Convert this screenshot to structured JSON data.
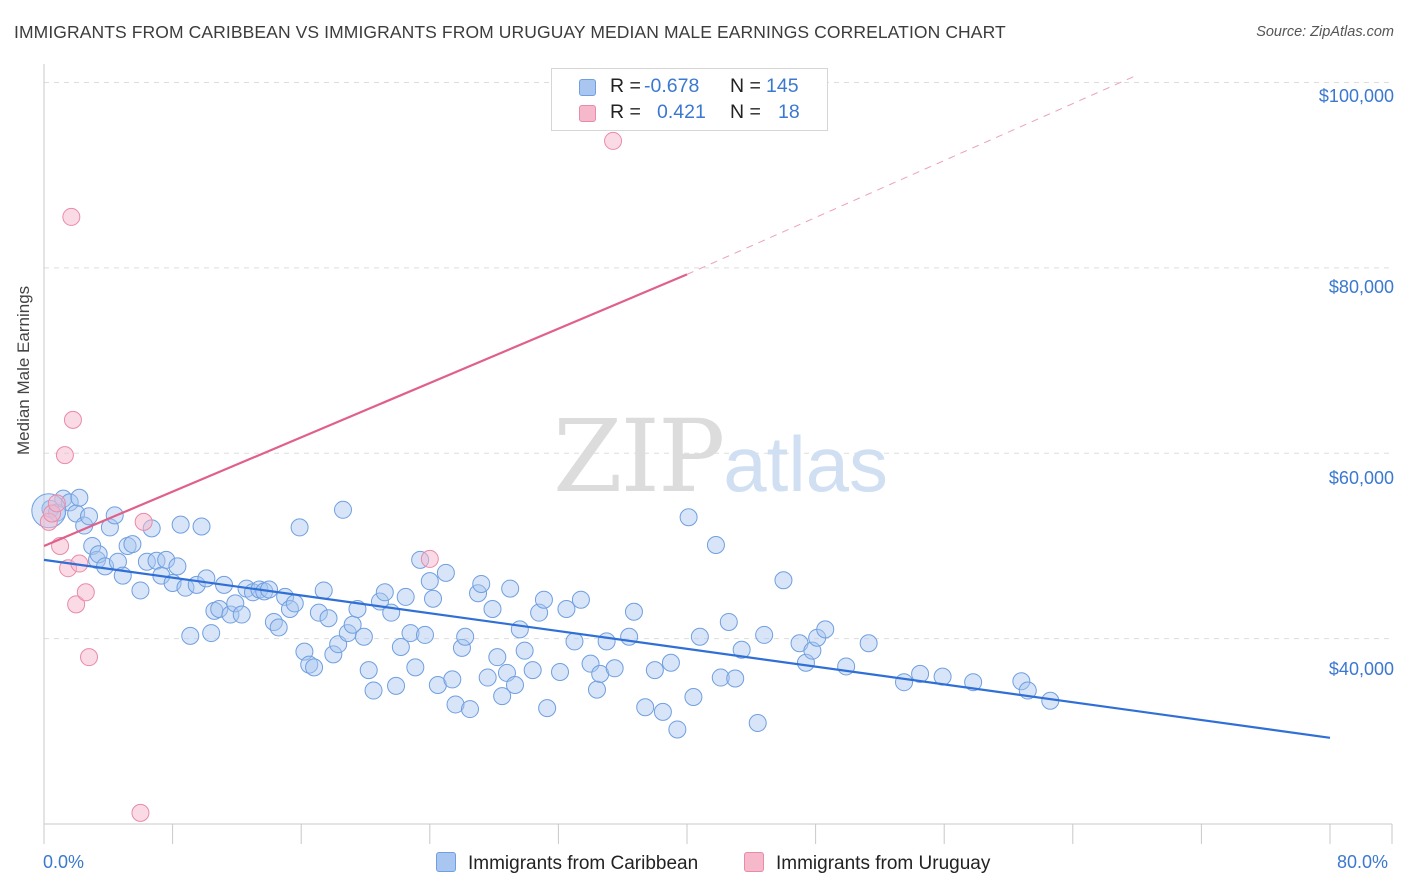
{
  "header": {
    "title": "IMMIGRANTS FROM CARIBBEAN VS IMMIGRANTS FROM URUGUAY MEDIAN MALE EARNINGS CORRELATION CHART",
    "source": "Source: ZipAtlas.com"
  },
  "watermark": {
    "zip": "ZIP",
    "atlas": "atlas"
  },
  "legend": {
    "r_label": "R =",
    "n_label": "N =",
    "rows": [
      {
        "r": "-0.678",
        "n": "145",
        "color": "#a9c6f0"
      },
      {
        "r": "0.421",
        "n": "18",
        "color": "#f6b8cb"
      }
    ]
  },
  "series_legend": {
    "caribbean": "Immigrants from Caribbean",
    "uruguay": "Immigrants from Uruguay"
  },
  "colors": {
    "blue_fill": "#a9c6f0",
    "blue_stroke": "#6f9fe0",
    "blue_line": "#2f6fd6",
    "pink_fill": "#f6b8cb",
    "pink_stroke": "#e98aa8",
    "pink_line": "#e0608a",
    "axis_text": "#3b78d0"
  },
  "axes": {
    "ylabel": "Median Male Earnings",
    "x_min_label": "0.0%",
    "x_max_label": "80.0%",
    "y_ticks": [
      "$100,000",
      "$80,000",
      "$60,000",
      "$40,000"
    ]
  },
  "chart_data": {
    "type": "scatter",
    "xlim": [
      0,
      80
    ],
    "ylim": [
      20000,
      102000
    ],
    "y_tick_values": [
      100000,
      80000,
      60000,
      40000
    ],
    "x_minor_ticks": [
      8,
      16,
      24,
      32,
      40,
      48,
      56,
      64,
      72
    ],
    "grid": true,
    "series": [
      {
        "name": "Immigrants from Caribbean",
        "color": "#a9c6f0",
        "points": [
          [
            0.4,
            54000
          ],
          [
            0.8,
            53600
          ],
          [
            1.2,
            55100
          ],
          [
            1.6,
            54700
          ],
          [
            2.0,
            53500
          ],
          [
            2.2,
            55200
          ],
          [
            2.5,
            52200
          ],
          [
            2.8,
            53200
          ],
          [
            3.0,
            50000
          ],
          [
            3.3,
            48500
          ],
          [
            3.4,
            49100
          ],
          [
            3.8,
            47800
          ],
          [
            4.1,
            52000
          ],
          [
            4.4,
            53300
          ],
          [
            4.6,
            48300
          ],
          [
            4.9,
            46800
          ],
          [
            5.2,
            50000
          ],
          [
            5.5,
            50200
          ],
          [
            6.0,
            45200
          ],
          [
            6.4,
            48300
          ],
          [
            6.7,
            51900
          ],
          [
            7.0,
            48400
          ],
          [
            7.3,
            46800
          ],
          [
            7.6,
            48500
          ],
          [
            8.0,
            46000
          ],
          [
            8.3,
            47800
          ],
          [
            8.5,
            52300
          ],
          [
            8.8,
            45500
          ],
          [
            9.1,
            40300
          ],
          [
            9.5,
            45800
          ],
          [
            9.8,
            52100
          ],
          [
            10.1,
            46500
          ],
          [
            10.4,
            40600
          ],
          [
            10.6,
            43000
          ],
          [
            10.9,
            43200
          ],
          [
            11.2,
            45800
          ],
          [
            11.6,
            42600
          ],
          [
            11.9,
            43800
          ],
          [
            12.3,
            42600
          ],
          [
            12.6,
            45400
          ],
          [
            13.0,
            45000
          ],
          [
            13.4,
            45300
          ],
          [
            13.7,
            45100
          ],
          [
            14.0,
            45300
          ],
          [
            14.3,
            41800
          ],
          [
            14.6,
            41200
          ],
          [
            15.0,
            44500
          ],
          [
            15.3,
            43200
          ],
          [
            15.6,
            43800
          ],
          [
            15.9,
            52000
          ],
          [
            16.2,
            38600
          ],
          [
            16.5,
            37200
          ],
          [
            16.8,
            36900
          ],
          [
            17.1,
            42800
          ],
          [
            17.4,
            45200
          ],
          [
            17.7,
            42200
          ],
          [
            18.0,
            38300
          ],
          [
            18.3,
            39400
          ],
          [
            18.6,
            53900
          ],
          [
            18.9,
            40600
          ],
          [
            19.2,
            41500
          ],
          [
            19.5,
            43200
          ],
          [
            19.9,
            40200
          ],
          [
            20.2,
            36600
          ],
          [
            20.5,
            34400
          ],
          [
            20.9,
            44000
          ],
          [
            21.2,
            45000
          ],
          [
            21.6,
            42800
          ],
          [
            21.9,
            34900
          ],
          [
            22.2,
            39100
          ],
          [
            22.5,
            44500
          ],
          [
            22.8,
            40600
          ],
          [
            23.1,
            36900
          ],
          [
            23.4,
            48500
          ],
          [
            23.7,
            40400
          ],
          [
            24.0,
            46200
          ],
          [
            24.2,
            44300
          ],
          [
            24.5,
            35000
          ],
          [
            25.0,
            47100
          ],
          [
            25.4,
            35600
          ],
          [
            25.6,
            32900
          ],
          [
            26.0,
            39000
          ],
          [
            26.2,
            40200
          ],
          [
            26.5,
            32400
          ],
          [
            27.0,
            44900
          ],
          [
            27.2,
            45900
          ],
          [
            27.6,
            35800
          ],
          [
            27.9,
            43200
          ],
          [
            28.2,
            38000
          ],
          [
            28.5,
            33800
          ],
          [
            28.8,
            36300
          ],
          [
            29.0,
            45400
          ],
          [
            29.3,
            35000
          ],
          [
            29.6,
            41000
          ],
          [
            29.9,
            38700
          ],
          [
            30.4,
            36600
          ],
          [
            30.8,
            42800
          ],
          [
            31.1,
            44200
          ],
          [
            31.3,
            32500
          ],
          [
            32.1,
            36400
          ],
          [
            32.5,
            43200
          ],
          [
            33.0,
            39700
          ],
          [
            33.4,
            44200
          ],
          [
            34.0,
            37300
          ],
          [
            34.4,
            34500
          ],
          [
            34.6,
            36200
          ],
          [
            35.0,
            39700
          ],
          [
            35.5,
            36800
          ],
          [
            36.4,
            40200
          ],
          [
            36.7,
            42900
          ],
          [
            37.4,
            32600
          ],
          [
            38.0,
            36600
          ],
          [
            38.5,
            32100
          ],
          [
            39.0,
            37400
          ],
          [
            39.4,
            30200
          ],
          [
            40.1,
            53100
          ],
          [
            40.4,
            33700
          ],
          [
            40.8,
            40200
          ],
          [
            41.8,
            50100
          ],
          [
            42.1,
            35800
          ],
          [
            42.6,
            41800
          ],
          [
            43.0,
            35700
          ],
          [
            43.4,
            38800
          ],
          [
            44.4,
            30900
          ],
          [
            44.8,
            40400
          ],
          [
            46.0,
            46300
          ],
          [
            47.0,
            39500
          ],
          [
            47.4,
            37400
          ],
          [
            47.8,
            38700
          ],
          [
            48.1,
            40100
          ],
          [
            48.6,
            41000
          ],
          [
            49.9,
            37000
          ],
          [
            51.3,
            39500
          ],
          [
            53.5,
            35300
          ],
          [
            54.5,
            36200
          ],
          [
            55.9,
            35900
          ],
          [
            57.8,
            35300
          ],
          [
            60.8,
            35400
          ],
          [
            61.2,
            34400
          ],
          [
            62.6,
            33300
          ]
        ]
      },
      {
        "name": "Immigrants from Uruguay",
        "color": "#f6b8cb",
        "points": [
          [
            0.3,
            52600
          ],
          [
            0.5,
            53500
          ],
          [
            0.8,
            54600
          ],
          [
            1.0,
            50000
          ],
          [
            1.3,
            59800
          ],
          [
            1.5,
            47600
          ],
          [
            1.7,
            85500
          ],
          [
            1.8,
            63600
          ],
          [
            2.0,
            43700
          ],
          [
            2.2,
            48100
          ],
          [
            2.6,
            45000
          ],
          [
            2.8,
            38000
          ],
          [
            6.2,
            52600
          ],
          [
            6.0,
            21200
          ],
          [
            24.0,
            48600
          ],
          [
            35.4,
            93700
          ]
        ]
      }
    ],
    "trendlines": [
      {
        "series": "Immigrants from Caribbean",
        "x": [
          0,
          80
        ],
        "y": [
          48500,
          29300
        ],
        "style": "solid"
      },
      {
        "series": "Immigrants from Uruguay",
        "x": [
          0,
          40
        ],
        "y": [
          50000,
          79300
        ],
        "style": "solid"
      },
      {
        "series": "Immigrants from Uruguay",
        "x": [
          40,
          68
        ],
        "y": [
          79300,
          100800
        ],
        "style": "dashed"
      }
    ]
  }
}
